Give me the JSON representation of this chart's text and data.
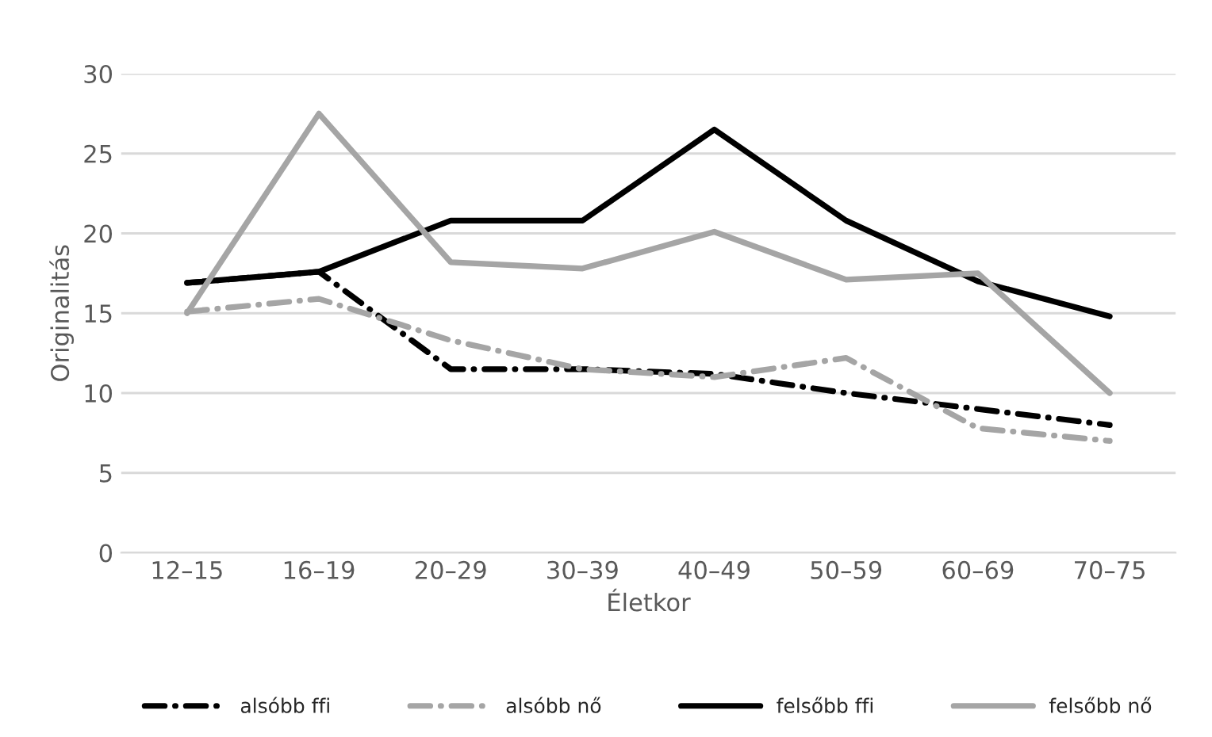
{
  "chart_data": {
    "type": "line",
    "xlabel": "Életkor",
    "ylabel": "Originalitás",
    "categories": [
      "12–15",
      "16–19",
      "20–29",
      "30–39",
      "40–49",
      "50–59",
      "60–69",
      "70–75"
    ],
    "ylim": [
      0,
      30
    ],
    "yticks": [
      0,
      5,
      10,
      15,
      20,
      25,
      30
    ],
    "grid": "y",
    "legend": "bottom",
    "series": [
      {
        "name": "alsóbb ffi",
        "color": "#000000",
        "line_style": "dashed",
        "values": [
          16.9,
          17.6,
          11.5,
          11.5,
          11.2,
          10.0,
          9.0,
          8.0
        ]
      },
      {
        "name": "alsóbb nő",
        "color": "#a5a5a5",
        "line_style": "dashed",
        "values": [
          15.1,
          15.9,
          13.3,
          11.5,
          11.0,
          12.2,
          7.8,
          7.0
        ]
      },
      {
        "name": "felsőbb ffi",
        "color": "#000000",
        "line_style": "solid",
        "values": [
          16.9,
          17.6,
          20.8,
          20.8,
          26.5,
          20.8,
          17.0,
          14.8
        ]
      },
      {
        "name": "felsőbb nő",
        "color": "#a5a5a5",
        "line_style": "solid",
        "values": [
          15.0,
          27.5,
          18.2,
          17.8,
          20.1,
          17.1,
          17.5,
          10.0
        ]
      }
    ]
  }
}
